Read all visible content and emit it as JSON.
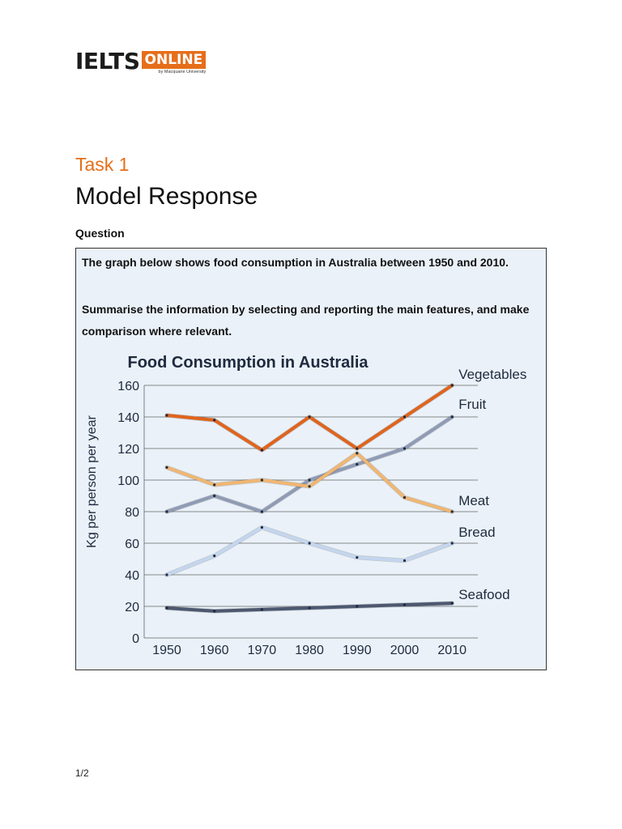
{
  "logo": {
    "main": "IELTS",
    "badge": "ONLINE",
    "sub": "by Macquarie University"
  },
  "task_label": "Task 1",
  "page_title": "Model Response",
  "question_label": "Question",
  "question": {
    "line1": "The graph below shows food consumption in Australia between 1950 and 2010.",
    "line2": "Summarise the information by selecting and reporting the main features, and make comparison where relevant."
  },
  "page_number": "1/2",
  "colors": {
    "accent": "#e66e1a",
    "box_bg": "#eaf1f8",
    "vegetables": "#e0641c",
    "fruit": "#8f9bb4",
    "meat": "#f0b672",
    "bread": "#c4d6ee",
    "seafood": "#4d5870",
    "grid": "#666666",
    "title": "#1e2a3e"
  },
  "chart_data": {
    "type": "line",
    "title": "Food Consumption in Australia",
    "xlabel": "",
    "ylabel": "Kg per person per year",
    "x": [
      "1950",
      "1960",
      "1970",
      "1980",
      "1990",
      "2000",
      "2010"
    ],
    "ylim": [
      0,
      160
    ],
    "yticks": [
      "0",
      "20",
      "40",
      "60",
      "80",
      "100",
      "120",
      "140",
      "160"
    ],
    "grid": true,
    "legend": "labels at right end of lines",
    "series": [
      {
        "name": "Vegetables",
        "key": "vegetables",
        "values": [
          141,
          138,
          119,
          140,
          120,
          140,
          160
        ]
      },
      {
        "name": "Fruit",
        "key": "fruit",
        "values": [
          80,
          90,
          80,
          100,
          110,
          120,
          140
        ]
      },
      {
        "name": "Meat",
        "key": "meat",
        "values": [
          108,
          97,
          100,
          96,
          117,
          89,
          80
        ]
      },
      {
        "name": "Bread",
        "key": "bread",
        "values": [
          40,
          52,
          70,
          60,
          51,
          49,
          60
        ]
      },
      {
        "name": "Seafood",
        "key": "seafood",
        "values": [
          19,
          17,
          18,
          19,
          20,
          21,
          22
        ]
      }
    ]
  }
}
